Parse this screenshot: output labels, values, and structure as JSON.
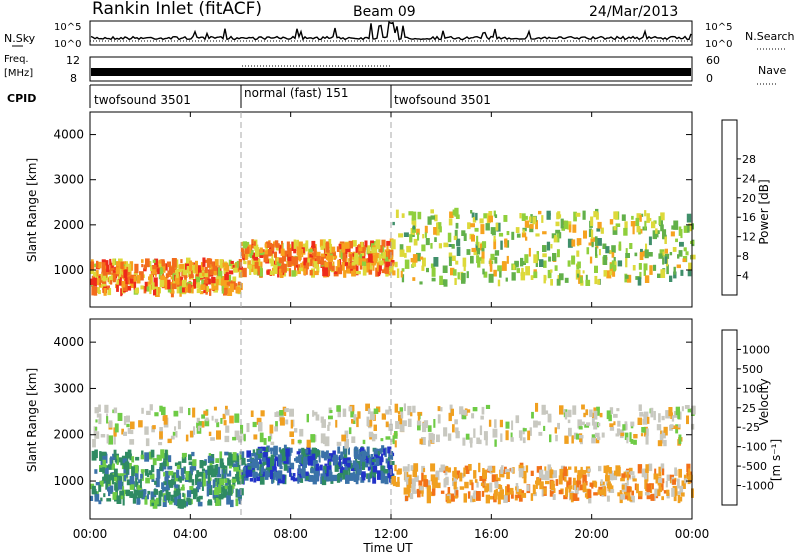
{
  "header": {
    "station": "Rankin Inlet (fitACF)",
    "beam": "Beam 09",
    "date": "24/Mar/2013"
  },
  "top_panels": {
    "nsky_label": "N.Sky",
    "nsearch_label": "N.Search",
    "noise_ticks": [
      "10^5",
      "10^0"
    ],
    "freq_label_line1": "Freq.",
    "freq_label_line2": "[MHz]",
    "freq_ticks": [
      "12",
      "8"
    ],
    "nave_label": "Nave",
    "nave_ticks": [
      "60",
      "0"
    ],
    "cpid_label": "CPID",
    "cpid_segments": [
      {
        "label": "twofsound 3501",
        "start_hour": 0,
        "end_hour": 6
      },
      {
        "label": "normal (fast) 151",
        "start_hour": 6,
        "end_hour": 12
      },
      {
        "label": "twofsound 3501",
        "start_hour": 12,
        "end_hour": 24
      }
    ]
  },
  "chart_data": [
    {
      "type": "heatmap",
      "parameter": "Power",
      "ylabel": "Slant Range [km]",
      "xlabel": "Time UT",
      "x_ticks": [
        "00:00",
        "04:00",
        "08:00",
        "12:00",
        "16:00",
        "20:00",
        "00:00"
      ],
      "xlim": [
        0,
        24
      ],
      "y_ticks": [
        1000,
        2000,
        3000,
        4000
      ],
      "ylim": [
        180,
        4500
      ],
      "colorbar": {
        "label": "Power [dB]",
        "range": [
          0,
          32
        ],
        "ticks": [
          "4",
          "8",
          "12",
          "16",
          "20",
          "24",
          "28"
        ],
        "colors": [
          "#1a26e0",
          "#2e5fb8",
          "#3f8f6a",
          "#62b04a",
          "#8fcf3c",
          "#ddd93a",
          "#f6a21e",
          "#f26b1d",
          "#ee2a1b"
        ]
      },
      "features": [
        {
          "hours": [
            0,
            6
          ],
          "range_km": [
            500,
            1200
          ],
          "dominant_power_db": 28
        },
        {
          "hours": [
            6,
            12
          ],
          "range_km": [
            900,
            1600
          ],
          "dominant_power_db": 28
        },
        {
          "hours": [
            12,
            24
          ],
          "range_km": [
            700,
            2300
          ],
          "dominant_power_db": 20
        }
      ]
    },
    {
      "type": "heatmap",
      "parameter": "Velocity",
      "ylabel": "Slant Range [km]",
      "xlabel": "Time UT",
      "x_ticks": [
        "00:00",
        "04:00",
        "08:00",
        "12:00",
        "16:00",
        "20:00",
        "00:00"
      ],
      "xlim": [
        0,
        24
      ],
      "y_ticks": [
        1000,
        2000,
        3000,
        4000
      ],
      "ylim": [
        180,
        4500
      ],
      "colorbar": {
        "label": "Velocity [m s^-1]",
        "ticks": [
          "1000",
          "500",
          "100",
          "25",
          "-25",
          "-100",
          "-500",
          "-1000"
        ],
        "colors": [
          "#2232c8",
          "#3a72a8",
          "#2f8a62",
          "#6ecb45",
          "#c8c8c0",
          "#f0a020",
          "#f27018",
          "#ee2a1b"
        ]
      },
      "features": [
        {
          "hours": [
            0,
            6
          ],
          "range_km": [
            500,
            1600
          ],
          "dominant_velocity": "100"
        },
        {
          "hours": [
            6,
            12
          ],
          "range_km": [
            1000,
            1700
          ],
          "dominant_velocity": "500"
        },
        {
          "hours": [
            12,
            24
          ],
          "range_km": [
            600,
            1300
          ],
          "dominant_velocity": "-100"
        },
        {
          "hours": [
            0,
            24
          ],
          "range_km": [
            1800,
            2600
          ],
          "dominant_velocity": "-25"
        }
      ]
    }
  ],
  "y_tick_labels": [
    "1000",
    "2000",
    "3000",
    "4000"
  ],
  "x_axis_title": "Time UT",
  "power_colorbar_title": "Power [dB]",
  "velocity_colorbar_title": "Velocity"
}
